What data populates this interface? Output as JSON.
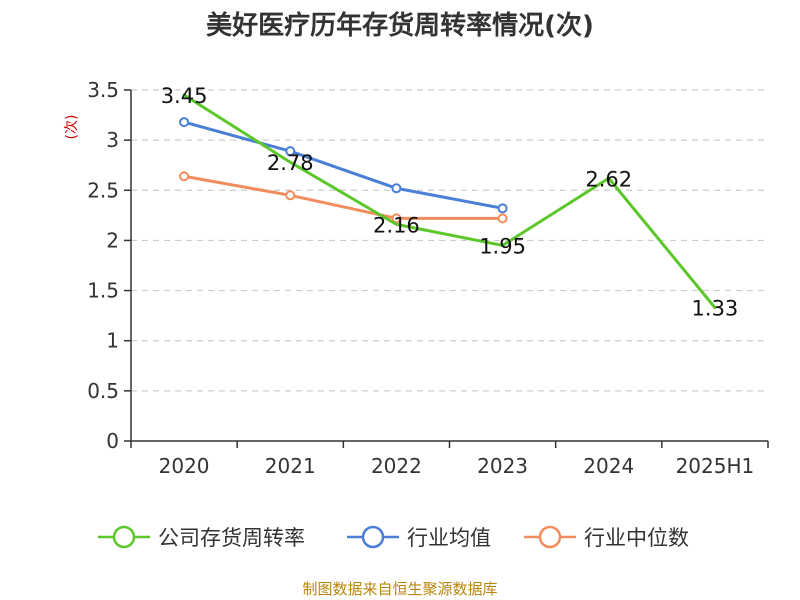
{
  "colors": {
    "company": "#5cc72a",
    "industry_avg": "#4a7fd8",
    "industry_median": "#f28c5c",
    "grid": "#cccccc",
    "axis": "#333333"
  },
  "source": "制图数据来自恒生聚源数据库",
  "chart_data": {
    "type": "line",
    "title": "美好医疗历年存货周转率情况(次)",
    "ylabel": "(次)",
    "xlabel": "",
    "categories": [
      "2020",
      "2021",
      "2022",
      "2023",
      "2024",
      "2025H1"
    ],
    "ylim": [
      0,
      3.5
    ],
    "yticks": [
      0,
      0.5,
      1,
      1.5,
      2,
      2.5,
      3,
      3.5
    ],
    "ytick_labels": [
      "0",
      "0.5",
      "1",
      "1.5",
      "2",
      "2.5",
      "3",
      "3.5"
    ],
    "grid": true,
    "legend_position": "bottom",
    "series": [
      {
        "name": "公司存货周转率",
        "color_key": "company",
        "values": [
          3.45,
          2.78,
          2.16,
          1.95,
          2.62,
          1.33
        ],
        "labels": [
          "3.45",
          "2.78",
          "2.16",
          "1.95",
          "2.62",
          "1.33"
        ],
        "markers": false
      },
      {
        "name": "行业均值",
        "color_key": "industry_avg",
        "values": [
          3.18,
          2.89,
          2.52,
          2.32,
          null,
          null
        ],
        "markers": true
      },
      {
        "name": "行业中位数",
        "color_key": "industry_median",
        "values": [
          2.64,
          2.45,
          2.22,
          2.22,
          null,
          null
        ],
        "markers": true
      }
    ]
  }
}
